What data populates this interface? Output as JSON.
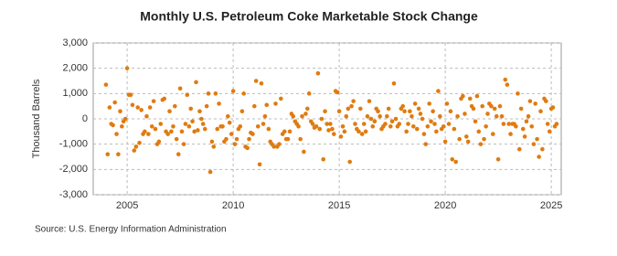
{
  "chart_data": {
    "type": "scatter",
    "title": "Monthly U.S. Petroleum Coke Marketable Stock Change",
    "y_label": "Thousand Barrels",
    "source": "Source: U.S. Energy Information Administration",
    "color": "#e07b0f",
    "grid": true,
    "xlim": [
      2003.4,
      2025.47
    ],
    "xticks": [
      2005,
      2010,
      2015,
      2020,
      2025
    ],
    "ylim": [
      -3000,
      3000
    ],
    "yticks": [
      {
        "value": -3000,
        "label": "-3,000"
      },
      {
        "value": -2000,
        "label": "-2,000"
      },
      {
        "value": -1000,
        "label": "-1,000"
      },
      0,
      {
        "value": 1000,
        "label": "1,000"
      },
      {
        "value": 2000,
        "label": "2,000"
      },
      {
        "value": 3000,
        "label": "3,000"
      }
    ],
    "x": [
      2004.0,
      2004.08,
      2004.17,
      2004.25,
      2004.33,
      2004.42,
      2004.5,
      2004.58,
      2004.67,
      2004.75,
      2004.83,
      2004.92,
      2005.0,
      2005.08,
      2005.17,
      2005.25,
      2005.33,
      2005.42,
      2005.5,
      2005.58,
      2005.67,
      2005.75,
      2005.83,
      2005.92,
      2006.0,
      2006.08,
      2006.17,
      2006.25,
      2006.33,
      2006.42,
      2006.5,
      2006.58,
      2006.67,
      2006.75,
      2006.83,
      2006.92,
      2007.0,
      2007.08,
      2007.17,
      2007.25,
      2007.33,
      2007.42,
      2007.5,
      2007.58,
      2007.67,
      2007.75,
      2007.83,
      2007.92,
      2008.0,
      2008.08,
      2008.17,
      2008.25,
      2008.33,
      2008.42,
      2008.5,
      2008.58,
      2008.67,
      2008.75,
      2008.83,
      2008.92,
      2009.0,
      2009.08,
      2009.17,
      2009.25,
      2009.33,
      2009.42,
      2009.5,
      2009.58,
      2009.67,
      2009.75,
      2009.83,
      2009.92,
      2010.0,
      2010.08,
      2010.17,
      2010.25,
      2010.33,
      2010.42,
      2010.5,
      2010.58,
      2010.67,
      2010.75,
      2010.83,
      2010.92,
      2011.0,
      2011.08,
      2011.17,
      2011.25,
      2011.33,
      2011.42,
      2011.5,
      2011.58,
      2011.67,
      2011.75,
      2011.83,
      2011.92,
      2012.0,
      2012.08,
      2012.17,
      2012.25,
      2012.33,
      2012.42,
      2012.5,
      2012.58,
      2012.67,
      2012.75,
      2012.83,
      2012.92,
      2013.0,
      2013.08,
      2013.17,
      2013.25,
      2013.33,
      2013.42,
      2013.5,
      2013.58,
      2013.67,
      2013.75,
      2013.83,
      2013.92,
      2014.0,
      2014.08,
      2014.17,
      2014.25,
      2014.33,
      2014.42,
      2014.5,
      2014.58,
      2014.67,
      2014.75,
      2014.83,
      2014.92,
      2015.0,
      2015.08,
      2015.17,
      2015.25,
      2015.33,
      2015.42,
      2015.5,
      2015.58,
      2015.67,
      2015.75,
      2015.83,
      2015.92,
      2016.0,
      2016.08,
      2016.17,
      2016.25,
      2016.33,
      2016.42,
      2016.5,
      2016.58,
      2016.67,
      2016.75,
      2016.83,
      2016.92,
      2017.0,
      2017.08,
      2017.17,
      2017.25,
      2017.33,
      2017.42,
      2017.5,
      2017.58,
      2017.67,
      2017.75,
      2017.83,
      2017.92,
      2018.0,
      2018.08,
      2018.17,
      2018.25,
      2018.33,
      2018.42,
      2018.5,
      2018.58,
      2018.67,
      2018.75,
      2018.83,
      2018.92,
      2019.0,
      2019.08,
      2019.17,
      2019.25,
      2019.33,
      2019.42,
      2019.5,
      2019.58,
      2019.67,
      2019.75,
      2019.83,
      2019.92,
      2020.0,
      2020.08,
      2020.17,
      2020.25,
      2020.33,
      2020.42,
      2020.5,
      2020.58,
      2020.67,
      2020.75,
      2020.83,
      2020.92,
      2021.0,
      2021.08,
      2021.17,
      2021.25,
      2021.33,
      2021.42,
      2021.5,
      2021.58,
      2021.67,
      2021.75,
      2021.83,
      2021.92,
      2022.0,
      2022.08,
      2022.17,
      2022.25,
      2022.33,
      2022.42,
      2022.5,
      2022.58,
      2022.67,
      2022.75,
      2022.83,
      2022.92,
      2023.0,
      2023.08,
      2023.17,
      2023.25,
      2023.33,
      2023.42,
      2023.5,
      2023.58,
      2023.67,
      2023.75,
      2023.83,
      2023.92,
      2024.0,
      2024.08,
      2024.17,
      2024.25,
      2024.33,
      2024.42,
      2024.5,
      2024.58,
      2024.67,
      2024.75,
      2024.83,
      2024.92,
      2025.0,
      2025.08,
      2025.17,
      2025.25
    ],
    "values": [
      1350,
      -1400,
      450,
      -200,
      -250,
      650,
      -600,
      -1400,
      300,
      -300,
      -100,
      0,
      2000,
      950,
      950,
      550,
      -1250,
      -1100,
      450,
      -950,
      350,
      -600,
      -500,
      100,
      -600,
      450,
      -300,
      700,
      -400,
      -1000,
      -900,
      -200,
      750,
      800,
      -500,
      -600,
      300,
      -500,
      -300,
      500,
      -800,
      -1400,
      1200,
      -500,
      -1000,
      -200,
      950,
      -300,
      400,
      -100,
      -500,
      1450,
      -450,
      300,
      0,
      -200,
      -400,
      500,
      1000,
      -2100,
      -900,
      -1100,
      1000,
      -400,
      600,
      -300,
      -300,
      -900,
      -800,
      100,
      -150,
      -600,
      1100,
      -1000,
      -800,
      -400,
      -300,
      300,
      1000,
      -1100,
      -1150,
      -800,
      -550,
      -600,
      500,
      1500,
      -300,
      -1800,
      1400,
      -200,
      100,
      550,
      -400,
      -900,
      -1000,
      -1100,
      600,
      -1100,
      -1000,
      800,
      -600,
      -500,
      -800,
      -800,
      -500,
      200,
      100,
      -100,
      -200,
      -300,
      -800,
      100,
      -1300,
      200,
      400,
      1000,
      -100,
      -200,
      -350,
      -300,
      1800,
      -400,
      0,
      -1600,
      300,
      -200,
      -450,
      -200,
      -400,
      -600,
      1100,
      1050,
      300,
      -700,
      -300,
      -500,
      100,
      400,
      -1700,
      500,
      700,
      -200,
      -400,
      -500,
      400,
      -600,
      -200,
      -500,
      100,
      700,
      0,
      -300,
      -100,
      400,
      300,
      100,
      -400,
      -300,
      -200,
      100,
      400,
      -300,
      -100,
      1400,
      0,
      -300,
      -200,
      400,
      500,
      300,
      -500,
      -200,
      300,
      100,
      -300,
      600,
      -400,
      400,
      200,
      0,
      -600,
      -1000,
      -300,
      600,
      -100,
      300,
      -200,
      -500,
      1100,
      100,
      -400,
      -300,
      -900,
      600,
      -200,
      300,
      -1600,
      -400,
      -1700,
      100,
      -800,
      800,
      900,
      200,
      -700,
      -900,
      800,
      500,
      400,
      -100,
      900,
      -500,
      -1000,
      500,
      -800,
      -300,
      200,
      600,
      500,
      -600,
      400,
      100,
      -1600,
      500,
      100,
      -200,
      1550,
      1350,
      -200,
      -600,
      -200,
      -200,
      -300,
      1000,
      -1200,
      400,
      -400,
      -700,
      -100,
      100,
      700,
      -300,
      -1000,
      600,
      -800,
      -1500,
      300,
      -1200,
      800,
      700,
      -200,
      -500,
      400,
      450,
      -300,
      -200
    ]
  }
}
